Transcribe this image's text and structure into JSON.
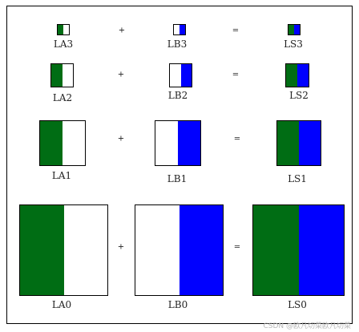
{
  "colors": {
    "green": "#006d14",
    "blue": "#0000ff",
    "white": "#ffffff",
    "border": "#000000"
  },
  "operators": {
    "plus": "+",
    "equals": "="
  },
  "rows": [
    {
      "a": {
        "label": "LA3",
        "left": "green",
        "right": "white"
      },
      "b": {
        "label": "LB3",
        "left": "white",
        "right": "blue"
      },
      "s": {
        "label": "LS3",
        "left": "green",
        "right": "blue"
      }
    },
    {
      "a": {
        "label": "LA2",
        "left": "green",
        "right": "white"
      },
      "b": {
        "label": "LB2",
        "left": "white",
        "right": "blue"
      },
      "s": {
        "label": "LS2",
        "left": "green",
        "right": "blue"
      }
    },
    {
      "a": {
        "label": "LA1",
        "left": "green",
        "right": "white"
      },
      "b": {
        "label": "LB1",
        "left": "white",
        "right": "blue"
      },
      "s": {
        "label": "LS1",
        "left": "green",
        "right": "blue"
      }
    },
    {
      "a": {
        "label": "LA0",
        "left": "green",
        "right": "white"
      },
      "b": {
        "label": "LB0",
        "left": "white",
        "right": "blue"
      },
      "s": {
        "label": "LS0",
        "left": "green",
        "right": "blue"
      }
    }
  ],
  "watermark": "CSDN @欧凡切菜欧凡切菜"
}
